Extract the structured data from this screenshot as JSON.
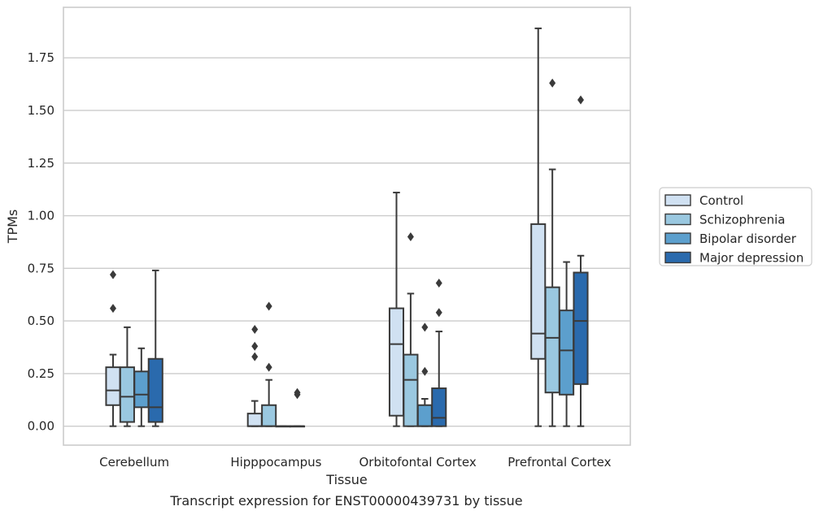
{
  "chart_data": {
    "type": "box",
    "caption": "Transcript expression for ENST00000439731 by tissue",
    "xlabel": "Tissue",
    "ylabel": "TPMs",
    "ylim": [
      -0.09,
      1.99
    ],
    "yticks": [
      0.0,
      0.25,
      0.5,
      0.75,
      1.0,
      1.25,
      1.5,
      1.75
    ],
    "ytick_labels": [
      "0.00",
      "0.25",
      "0.50",
      "0.75",
      "1.00",
      "1.25",
      "1.50",
      "1.75"
    ],
    "grid": true,
    "legend_position": "right",
    "categories": [
      "Cerebellum",
      "Hipppocampus",
      "Orbitofontal Cortex",
      "Prefrontal Cortex"
    ],
    "series": [
      {
        "name": "Control",
        "color": "#d0e1f2",
        "boxes": [
          {
            "whislo": 0.0,
            "q1": 0.1,
            "med": 0.17,
            "q3": 0.28,
            "whishi": 0.34,
            "fliers": [
              0.56,
              0.72
            ]
          },
          {
            "whislo": 0.0,
            "q1": 0.0,
            "med": 0.0,
            "q3": 0.06,
            "whishi": 0.12,
            "fliers": [
              0.33,
              0.38,
              0.46
            ]
          },
          {
            "whislo": 0.0,
            "q1": 0.05,
            "med": 0.39,
            "q3": 0.56,
            "whishi": 1.11,
            "fliers": []
          },
          {
            "whislo": 0.0,
            "q1": 0.32,
            "med": 0.44,
            "q3": 0.96,
            "whishi": 1.89,
            "fliers": []
          }
        ]
      },
      {
        "name": "Schizophrenia",
        "color": "#9ac8e0",
        "boxes": [
          {
            "whislo": 0.0,
            "q1": 0.02,
            "med": 0.14,
            "q3": 0.28,
            "whishi": 0.47,
            "fliers": []
          },
          {
            "whislo": 0.0,
            "q1": 0.0,
            "med": 0.0,
            "q3": 0.1,
            "whishi": 0.22,
            "fliers": [
              0.28,
              0.57
            ]
          },
          {
            "whislo": 0.0,
            "q1": 0.0,
            "med": 0.22,
            "q3": 0.34,
            "whishi": 0.63,
            "fliers": [
              0.9
            ]
          },
          {
            "whislo": 0.0,
            "q1": 0.16,
            "med": 0.42,
            "q3": 0.66,
            "whishi": 1.22,
            "fliers": [
              1.63
            ]
          }
        ]
      },
      {
        "name": "Bipolar disorder",
        "color": "#5c9fcd",
        "boxes": [
          {
            "whislo": 0.0,
            "q1": 0.09,
            "med": 0.15,
            "q3": 0.26,
            "whishi": 0.37,
            "fliers": []
          },
          {
            "whislo": 0.0,
            "q1": 0.0,
            "med": 0.0,
            "q3": 0.0,
            "whishi": 0.0,
            "fliers": []
          },
          {
            "whislo": 0.0,
            "q1": 0.0,
            "med": 0.0,
            "q3": 0.1,
            "whishi": 0.13,
            "fliers": [
              0.26,
              0.47
            ]
          },
          {
            "whislo": 0.0,
            "q1": 0.15,
            "med": 0.36,
            "q3": 0.55,
            "whishi": 0.78,
            "fliers": []
          }
        ]
      },
      {
        "name": "Major depression",
        "color": "#2a6aad",
        "boxes": [
          {
            "whislo": 0.0,
            "q1": 0.02,
            "med": 0.09,
            "q3": 0.32,
            "whishi": 0.74,
            "fliers": []
          },
          {
            "whislo": 0.0,
            "q1": 0.0,
            "med": 0.0,
            "q3": 0.0,
            "whishi": 0.0,
            "fliers": [
              0.15,
              0.16
            ]
          },
          {
            "whislo": 0.0,
            "q1": 0.0,
            "med": 0.04,
            "q3": 0.18,
            "whishi": 0.45,
            "fliers": [
              0.54,
              0.68
            ]
          },
          {
            "whislo": 0.0,
            "q1": 0.2,
            "med": 0.5,
            "q3": 0.73,
            "whishi": 0.81,
            "fliers": [
              1.55
            ]
          }
        ]
      }
    ]
  }
}
